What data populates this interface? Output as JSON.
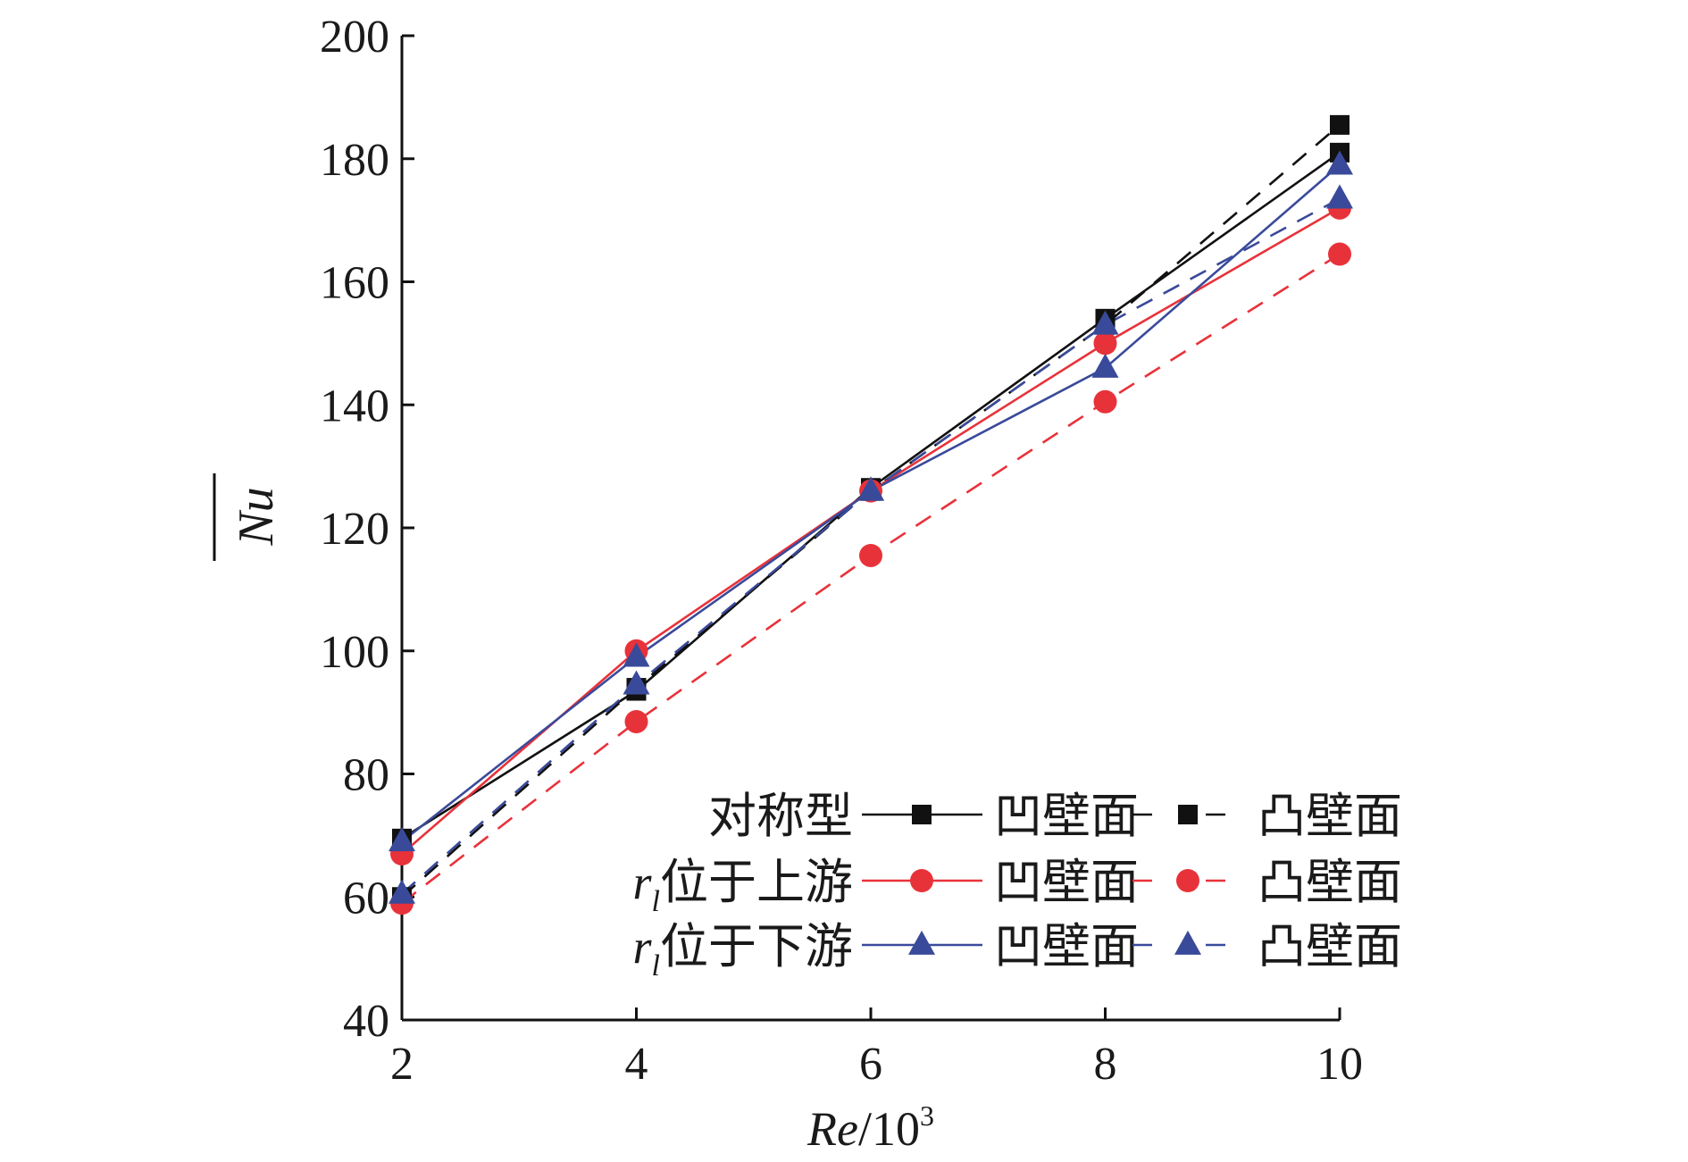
{
  "chart_data": {
    "type": "line",
    "xlabel": {
      "italic": "Re",
      "plain": "/10",
      "sup": "3"
    },
    "ylabel": "Nu",
    "xlim": [
      2,
      10
    ],
    "ylim": [
      40,
      200
    ],
    "xticks": [
      "2",
      "4",
      "6",
      "8",
      "10"
    ],
    "yticks": [
      "40",
      "60",
      "80",
      "100",
      "120",
      "140",
      "160",
      "180",
      "200"
    ],
    "x": [
      2,
      4,
      6,
      8,
      10
    ],
    "grid": false,
    "legend_position": "bottom-right",
    "legend": {
      "groups": [
        {
          "label": "对称型"
        },
        {
          "label_var": "r",
          "label_sub": "l",
          "label_rest": "位于上游"
        },
        {
          "label_var": "r",
          "label_sub": "l",
          "label_rest": "位于下游"
        }
      ],
      "concave_label": "凹壁面",
      "convex_label": "凸壁面"
    },
    "series": [
      {
        "group": 0,
        "style": "solid",
        "marker": "square",
        "color": "#111111",
        "values": [
          69.5,
          93.5,
          126.5,
          154.0,
          181.0
        ]
      },
      {
        "group": 0,
        "style": "dashed",
        "marker": "square",
        "color": "#111111",
        "values": [
          60.0,
          94.0,
          126.0,
          153.0,
          185.5
        ]
      },
      {
        "group": 1,
        "style": "solid",
        "marker": "circle",
        "color": "#e8323a",
        "values": [
          67.0,
          100.0,
          126.0,
          150.0,
          172.0
        ]
      },
      {
        "group": 1,
        "style": "dashed",
        "marker": "circle",
        "color": "#e8323a",
        "values": [
          59.0,
          88.5,
          115.5,
          140.5,
          164.5
        ]
      },
      {
        "group": 2,
        "style": "solid",
        "marker": "triangle",
        "color": "#3a4a9a",
        "values": [
          69.0,
          99.0,
          126.0,
          146.0,
          179.0
        ]
      },
      {
        "group": 2,
        "style": "dashed",
        "marker": "triangle",
        "color": "#3a4a9a",
        "values": [
          60.5,
          94.5,
          126.0,
          153.0,
          173.5
        ]
      }
    ]
  }
}
